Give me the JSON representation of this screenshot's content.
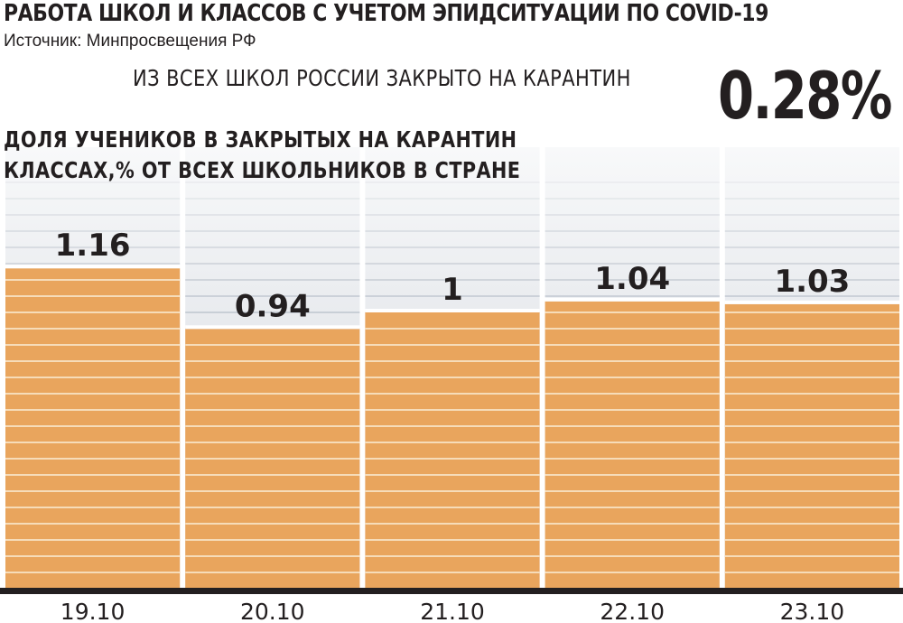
{
  "header": {
    "title": "РАБОТА ШКОЛ И КЛАССОВ С УЧЕТОМ ЭПИДСИТУАЦИИ ПО COVID-19",
    "source": "Источник: Минпросвещения РФ",
    "headline": "ИЗ ВСЕХ ШКОЛ РОССИИ ЗАКРЫТО НА КАРАНТИН",
    "headline_value": "0.28%"
  },
  "chart_data": {
    "type": "bar",
    "title_lines": [
      "ДОЛЯ УЧЕНИКОВ В ЗАКРЫТЫХ НА КАРАНТИН",
      "КЛАССАХ,% ОТ ВСЕХ ШКОЛЬНИКОВ В СТРАНЕ"
    ],
    "categories": [
      "19.10",
      "20.10",
      "21.10",
      "22.10",
      "23.10"
    ],
    "values": [
      1.16,
      0.94,
      1,
      1.04,
      1.03
    ],
    "value_labels": [
      "1.16",
      "0.94",
      "1",
      "1.04",
      "1.03"
    ],
    "ylim": [
      0,
      1.6
    ],
    "grid": false,
    "colors": {
      "bar": "#e9a55d",
      "bar_stripe": "#f6dcb9",
      "background_column": "#e0e3e8",
      "background_column_top": "#f8f9fa",
      "background_stripe": "#c5cbd3",
      "baseline": "#231f20"
    }
  }
}
